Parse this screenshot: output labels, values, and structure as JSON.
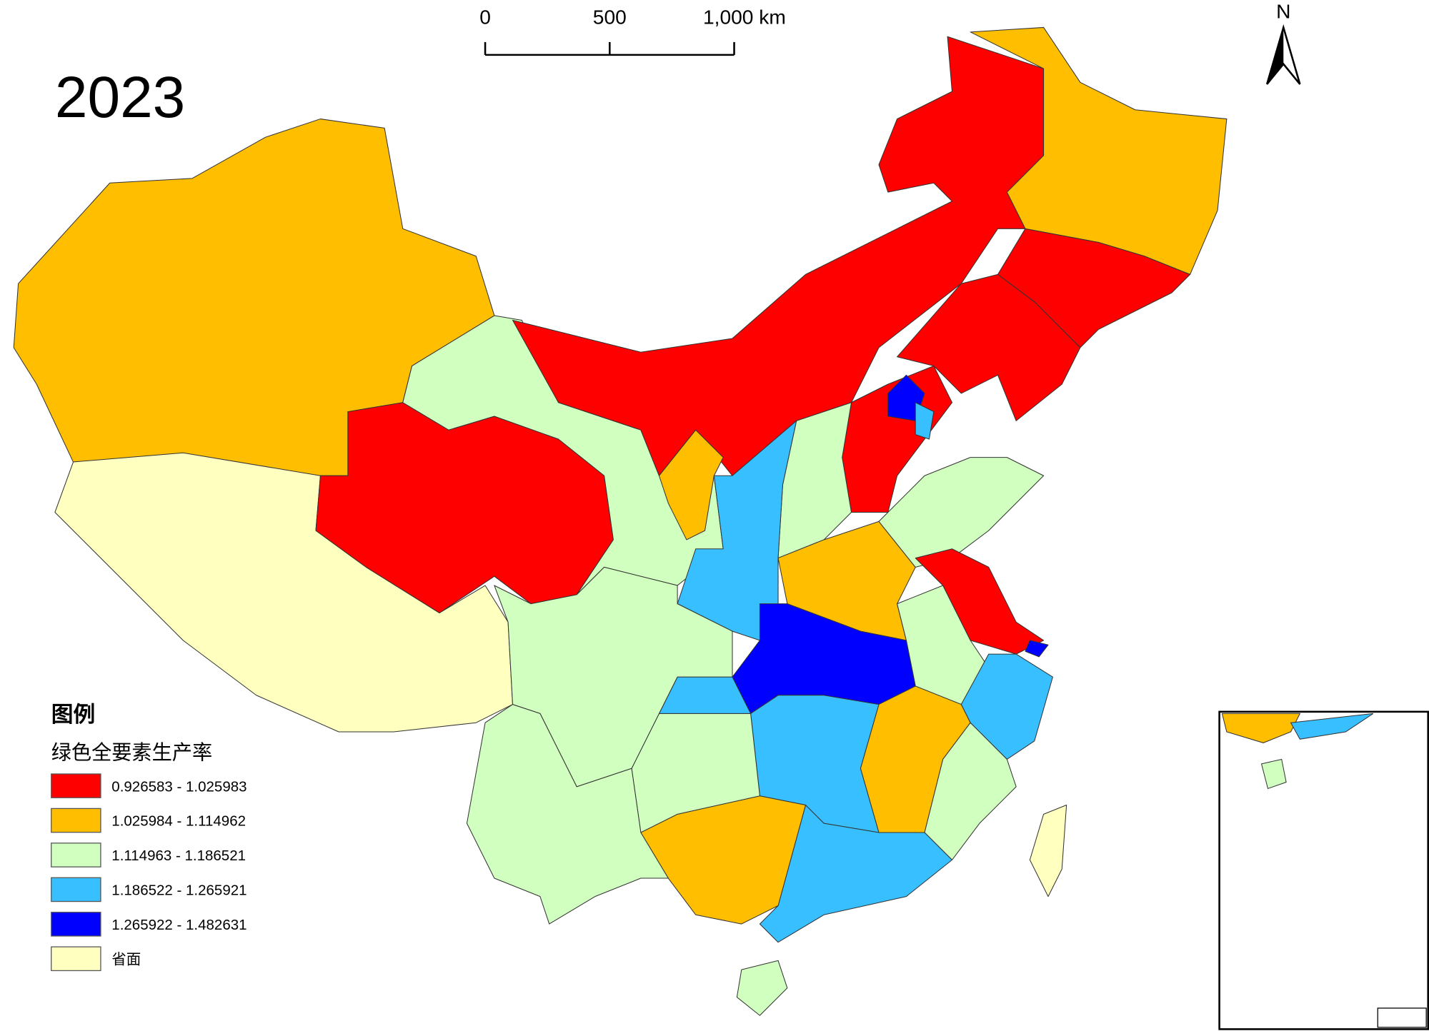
{
  "title": "2023",
  "north_arrow": "N",
  "scale_bar": {
    "ticks": [
      0,
      500,
      {
        "value": 1000,
        "label": "1,000 km"
      }
    ]
  },
  "legend": {
    "title": "图例",
    "subtitle": "绿色全要素生产率",
    "classes": [
      {
        "label": "0.926583 - 1.025983",
        "color": "#ff0000"
      },
      {
        "label": "1.025984 - 1.114962",
        "color": "#ffbf00"
      },
      {
        "label": "1.114963 - 1.186521",
        "color": "#d1ffbf"
      },
      {
        "label": "1.186522 - 1.265921",
        "color": "#38bfff"
      },
      {
        "label": "1.265922 - 1.482631",
        "color": "#0000ff"
      },
      {
        "label": "省面",
        "color": "#ffffc0"
      }
    ]
  }
}
